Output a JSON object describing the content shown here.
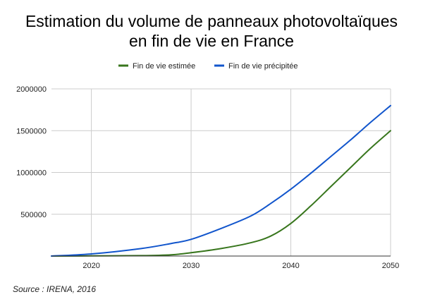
{
  "chart_data": {
    "type": "line",
    "title_lines": [
      "Estimation du volume de panneaux photovoltaïques",
      "en fin de vie en France"
    ],
    "xlabel": "",
    "ylabel": "",
    "xlim": [
      2016,
      2050
    ],
    "ylim": [
      0,
      2000000
    ],
    "x_ticks": [
      2020,
      2030,
      2040,
      2050
    ],
    "x_tick_labels": [
      "2020",
      "2030",
      "2040",
      "2050"
    ],
    "y_ticks": [
      500000,
      1000000,
      1500000,
      2000000
    ],
    "y_tick_labels": [
      "500000",
      "1000000",
      "1500000",
      "2000000"
    ],
    "grid": "vertical and horizontal",
    "legend_position": "top",
    "series": [
      {
        "name": "Fin de vie estimée",
        "color": "#38761d",
        "x": [
          2016,
          2020,
          2025,
          2028,
          2030,
          2033,
          2036,
          2038,
          2040,
          2042,
          2044,
          2046,
          2048,
          2050
        ],
        "values": [
          0,
          2000,
          5000,
          15000,
          40000,
          90000,
          160000,
          240000,
          390000,
          600000,
          830000,
          1060000,
          1290000,
          1500000
        ]
      },
      {
        "name": "Fin de vie précipitée",
        "color": "#1155cc",
        "x": [
          2016,
          2020,
          2025,
          2028,
          2030,
          2033,
          2036,
          2038,
          2040,
          2042,
          2044,
          2046,
          2048,
          2050
        ],
        "values": [
          0,
          25000,
          90000,
          150000,
          200000,
          330000,
          480000,
          630000,
          800000,
          990000,
          1190000,
          1390000,
          1600000,
          1800000
        ]
      }
    ]
  },
  "source_note": "Source : IRENA, 2016"
}
